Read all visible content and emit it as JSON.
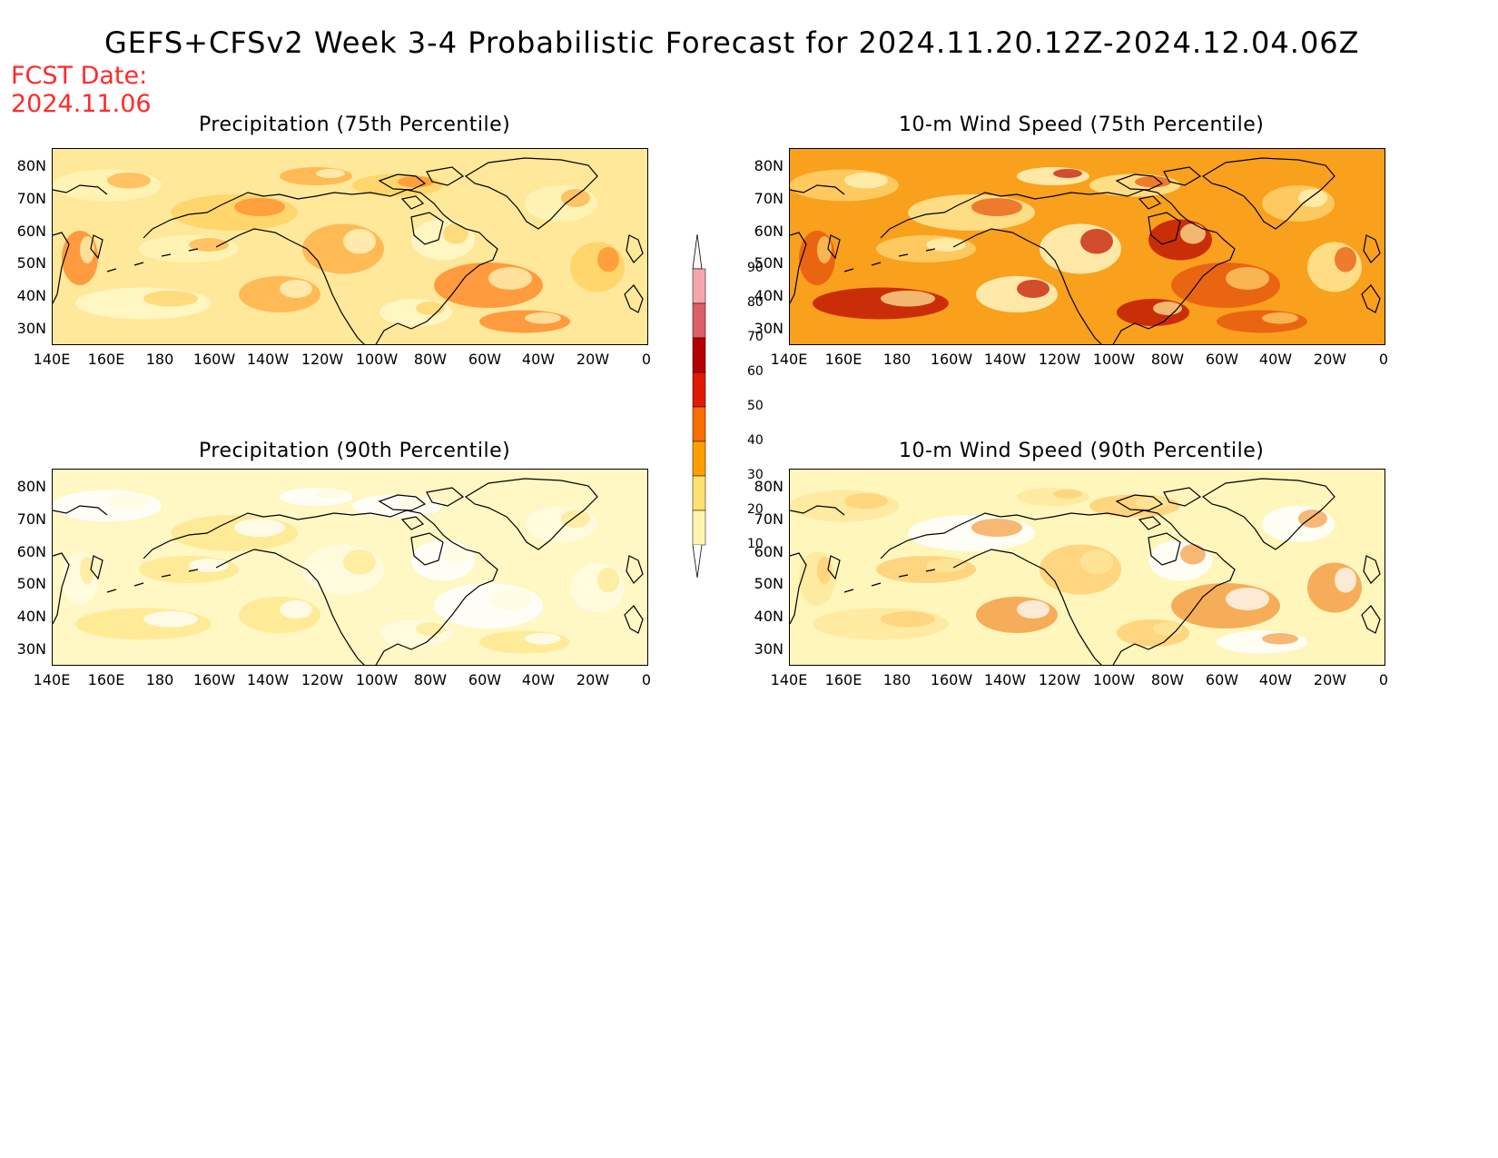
{
  "title": "GEFS+CFSv2 Week 3-4 Probabilistic Forecast for 2024.11.20.12Z-2024.12.04.06Z",
  "fcst_label": "FCST Date:",
  "fcst_date": "2024.11.06",
  "lat_ticks": [
    "80N",
    "70N",
    "60N",
    "50N",
    "40N",
    "30N"
  ],
  "lon_ticks": [
    "140E",
    "160E",
    "180",
    "160W",
    "140W",
    "120W",
    "100W",
    "80W",
    "60W",
    "40W",
    "20W",
    "0"
  ],
  "colorbar": {
    "levels": [
      "90",
      "80",
      "70",
      "60",
      "50",
      "40",
      "30",
      "20",
      "10"
    ],
    "colors": [
      "#fff4f4",
      "#f4a6ac",
      "#dc5f66",
      "#b40000",
      "#e01a00",
      "#f86e00",
      "#ff9e00",
      "#ffe070",
      "#fff5b0"
    ]
  },
  "panels": [
    {
      "id": "precip75",
      "title": "Precipitation (75th Percentile)",
      "base": "#ffe89a",
      "patches": [
        "#fff5b8",
        "#ffd264",
        "#ffb14a",
        "#ff8d2e",
        "#fff8c8"
      ]
    },
    {
      "id": "wind75",
      "title": "10-m Wind Speed (75th Percentile)",
      "base": "#f9a01c",
      "patches": [
        "#ffd06a",
        "#ffe796",
        "#fff4c0",
        "#e85a10",
        "#c21a06"
      ]
    },
    {
      "id": "precip90",
      "title": "Precipitation (90th Percentile)",
      "base": "#fff7c4",
      "patches": [
        "#ffffff",
        "#ffe890",
        "#fffbe0"
      ]
    },
    {
      "id": "wind90",
      "title": "10-m Wind Speed (90th Percentile)",
      "base": "#fff6bb",
      "patches": [
        "#ffe79c",
        "#ffffff",
        "#ffcf74",
        "#f4a048"
      ]
    }
  ]
}
